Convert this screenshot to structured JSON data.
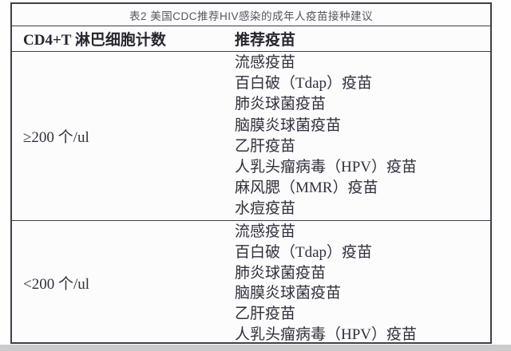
{
  "table": {
    "title": "表2 美国CDC推荐HIV感染的成年人疫苗接种建议",
    "columns": {
      "cd4_header": "CD4+T 淋巴细胞计数",
      "vaccine_header": "推荐疫苗"
    },
    "rows": [
      {
        "cd4_count": "≥200 个/ul",
        "vaccines": [
          "流感疫苗",
          "百白破（Tdap）疫苗",
          "肺炎球菌疫苗",
          "脑膜炎球菌疫苗",
          "乙肝疫苗",
          "人乳头瘤病毒（HPV）疫苗",
          "麻风腮（MMR）疫苗",
          "水痘疫苗"
        ]
      },
      {
        "cd4_count": "<200 个/ul",
        "vaccines": [
          "流感疫苗",
          "百白破（Tdap）疫苗",
          "肺炎球菌疫苗",
          "脑膜炎球菌疫苗",
          "乙肝疫苗",
          "人乳头瘤病毒（HPV）疫苗"
        ]
      }
    ],
    "colors": {
      "body_text": "#30303c",
      "title_text": "#55555f",
      "border": "#3f3f4a",
      "table_background": "#fcfcfd",
      "bottom_strip": "#cbcbcd"
    }
  }
}
